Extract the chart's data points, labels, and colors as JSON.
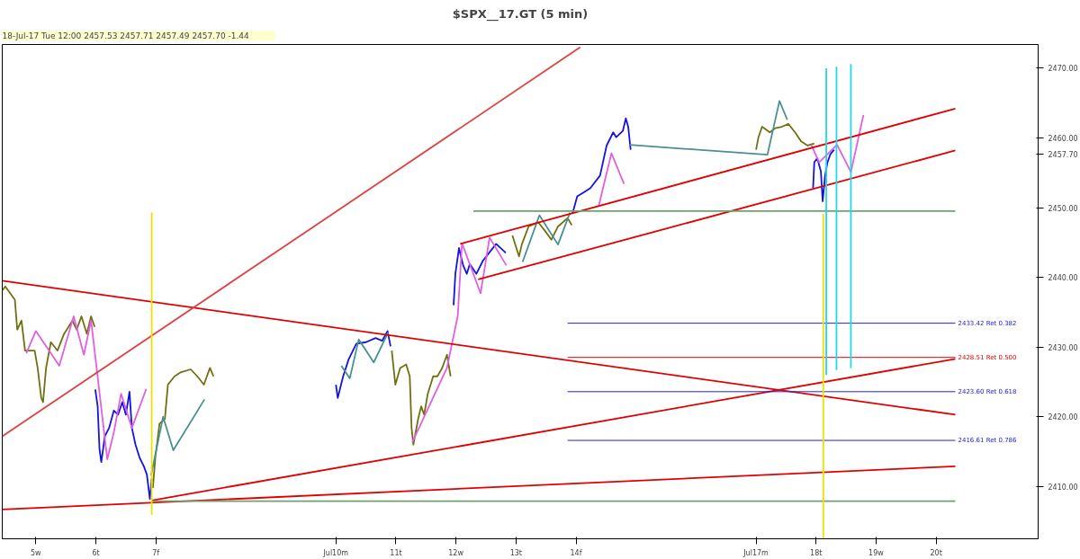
{
  "chart_data": {
    "type": "line",
    "title": "$SPX__17.GT (5 min)",
    "annotations": [
      "18-Jul-17 Tue 12:00   2457.53   2457.71   2457.49   2457.70   -1.44"
    ],
    "xlim": [
      4.44,
      21.7
    ],
    "ylim": [
      2402.5,
      2473.4
    ],
    "xticks": [
      {
        "value": 5,
        "label": "5w"
      },
      {
        "value": 6,
        "label": "6t"
      },
      {
        "value": 7,
        "label": "7f"
      },
      {
        "value": 10,
        "label": "Jul10m"
      },
      {
        "value": 11,
        "label": "11t"
      },
      {
        "value": 12,
        "label": "12w"
      },
      {
        "value": 13,
        "label": "13t"
      },
      {
        "value": 14,
        "label": "14f"
      },
      {
        "value": 17,
        "label": "Jul17m"
      },
      {
        "value": 18,
        "label": "18t"
      },
      {
        "value": 19,
        "label": "19w"
      },
      {
        "value": 20,
        "label": "20t"
      }
    ],
    "yticks": [
      {
        "value": 2410,
        "label": "2410.00"
      },
      {
        "value": 2420,
        "label": "2420.00"
      },
      {
        "value": 2430,
        "label": "2430.00"
      },
      {
        "value": 2440,
        "label": "2440.00"
      },
      {
        "value": 2450,
        "label": "2450.00"
      },
      {
        "value": 2457.7,
        "label": "2457.70"
      },
      {
        "value": 2460,
        "label": "2460.00"
      },
      {
        "value": 2470,
        "label": "2470.00"
      }
    ],
    "grid": false,
    "marker": "none",
    "line_style": "solid",
    "series": [
      {
        "color": "#707010",
        "x": [
          4.44,
          4.49,
          4.65,
          4.69,
          4.76,
          4.82,
          4.98,
          5.03,
          5.09,
          5.12,
          5.17,
          5.25,
          5.36,
          5.47,
          5.61,
          5.68,
          5.76,
          5.85,
          5.92,
          5.98,
          6.0,
          6.95,
          6.99,
          7.06,
          7.15,
          7.2,
          7.31,
          7.42,
          7.58,
          7.69,
          7.8,
          7.9,
          7.96,
          10.0,
          10.93,
          10.99,
          11.07,
          11.17,
          11.23,
          11.26,
          11.29,
          11.37,
          11.42,
          11.47,
          11.53,
          11.62,
          11.69,
          11.77,
          11.85,
          11.91,
          11.93,
          12.94,
          13.05,
          13.1,
          13.21,
          13.37,
          13.48,
          13.59,
          13.7,
          13.86,
          13.93,
          13.94,
          17.0,
          17.04,
          17.1,
          17.23,
          17.32,
          17.43,
          17.54,
          17.65,
          17.75,
          17.86,
          17.97
        ],
        "values": [
          2438.1,
          2438.7,
          2436.8,
          2432.5,
          2433.8,
          2429.5,
          2429.5,
          2427.0,
          2422.7,
          2422.1,
          2427.0,
          2430.7,
          2429.5,
          2431.9,
          2433.8,
          2432.5,
          2434.4,
          2431.9,
          2434.4,
          2432.9,
          null,
          2409.8,
          2414.1,
          2419.0,
          2419.7,
          2424.6,
          2425.8,
          2426.4,
          2426.8,
          2425.8,
          2424.6,
          2427.0,
          2425.8,
          null,
          2429.5,
          2424.6,
          2427.0,
          2427.5,
          2425.8,
          2418.4,
          2416.0,
          2419.7,
          2421.5,
          2420.3,
          2423.3,
          2425.8,
          2425.8,
          2427.0,
          2428.9,
          2425.8,
          null,
          2446.0,
          2443.0,
          2444.8,
          2447.3,
          2447.9,
          2446.7,
          2445.4,
          2447.3,
          2448.5,
          2447.5,
          null,
          2458.3,
          2460.1,
          2461.6,
          2460.8,
          2461.4,
          2461.6,
          2462.0,
          2460.8,
          2459.5,
          2458.9,
          2459.2
        ]
      },
      {
        "color": "#1414e0",
        "x": [
          5.99,
          6.03,
          6.06,
          6.09,
          6.15,
          6.22,
          6.3,
          6.37,
          6.44,
          6.5,
          6.56,
          6.6,
          6.66,
          6.73,
          6.8,
          6.85,
          6.9,
          6.93,
          6.94,
          10.0,
          10.03,
          10.12,
          10.21,
          10.34,
          10.5,
          10.66,
          10.77,
          10.86,
          10.91,
          10.92,
          11.96,
          11.99,
          12.05,
          12.12,
          12.18,
          12.23,
          12.34,
          12.45,
          12.56,
          12.67,
          12.83,
          12.9,
          13.94,
          14.02,
          14.13,
          14.24,
          14.4,
          14.51,
          14.62,
          14.67,
          14.78,
          14.83,
          14.87,
          14.91,
          14.92,
          17.95,
          17.97,
          18.02,
          18.08,
          18.11,
          18.15,
          18.19,
          18.24,
          18.3
        ],
        "values": [
          2423.9,
          2421.5,
          2415.4,
          2413.5,
          2417.2,
          2418.4,
          2420.9,
          2420.3,
          2422.1,
          2420.3,
          2423.6,
          2418.4,
          2416.0,
          2414.1,
          2412.9,
          2411.7,
          2408.2,
          2411.1,
          null,
          2424.6,
          2422.7,
          2425.8,
          2428.2,
          2430.5,
          2430.7,
          2431.3,
          2430.9,
          2432.3,
          2430.1,
          null,
          2436.0,
          2440.5,
          2444.2,
          2441.7,
          2440.5,
          2441.9,
          2440.5,
          2442.4,
          2443.6,
          2444.8,
          2443.5,
          null,
          2449.1,
          2451.6,
          2452.2,
          2452.8,
          2454.6,
          2458.9,
          2460.8,
          2460.1,
          2461.0,
          2462.8,
          2461.6,
          2458.3,
          null,
          2452.8,
          2456.5,
          2457.1,
          2455.2,
          2450.9,
          2454.6,
          2456.5,
          2457.7,
          2458.3
        ]
      },
      {
        "color": "#e060e0",
        "x": [
          4.84,
          5.0,
          5.39,
          5.63,
          5.8,
          5.92,
          6.19,
          6.3,
          6.42,
          6.6,
          6.84,
          7.0,
          11.27,
          11.85,
          12.03,
          12.1,
          12.41,
          12.56,
          12.84,
          13.0,
          14.38,
          14.59,
          14.8,
          14.85,
          17.92,
          18.05,
          18.35,
          18.58,
          18.79
        ],
        "values": [
          2429.1,
          2432.3,
          2427.3,
          2434.4,
          2428.9,
          2433.8,
          2413.9,
          2417.8,
          2423.3,
          2418.4,
          2424.0,
          null,
          2416.3,
          2427.0,
          2434.5,
          2444.9,
          2437.7,
          2445.7,
          2441.7,
          null,
          2450.3,
          2457.8,
          2453.4,
          null,
          2459.0,
          2456.5,
          2459.0,
          2455.1,
          2463.3
        ]
      },
      {
        "color": "#4a9090",
        "x": [
          6.92,
          7.12,
          7.29,
          7.81,
          7.9,
          10.09,
          10.23,
          10.38,
          10.63,
          10.87,
          11.0,
          13.11,
          13.39,
          13.7,
          13.9,
          14.0,
          14.89,
          17.19,
          17.39,
          17.52
        ],
        "values": [
          2411.6,
          2420.0,
          2415.2,
          2422.5,
          null,
          2427.3,
          2425.5,
          2431.1,
          2427.8,
          2432.1,
          null,
          2442.2,
          2448.9,
          2444.7,
          2449.3,
          null,
          2459.0,
          2457.6,
          2465.3,
          2462.6
        ]
      },
      {
        "color": "#e00000",
        "x": [
          4.44,
          20.32
        ],
        "values": [
          2439.5,
          2420.3
        ]
      },
      {
        "color": "#e00000",
        "x": [
          4.44,
          20.32
        ],
        "values": [
          2406.7,
          2412.9
        ]
      },
      {
        "color": "#e00000",
        "x": [
          6.93,
          20.32
        ],
        "values": [
          2408.0,
          2428.3
        ]
      },
      {
        "color": "#e00000",
        "x": [
          12.07,
          20.32
        ],
        "values": [
          2444.8,
          2464.2
        ]
      },
      {
        "color": "#e00000",
        "x": [
          12.37,
          20.32
        ],
        "values": [
          2439.7,
          2458.2
        ]
      },
      {
        "color": "#e04040",
        "x": [
          4.44,
          14.07
        ],
        "values": [
          2417.2,
          2473.0
        ]
      },
      {
        "color": "#70a070",
        "x": [
          6.93,
          20.32
        ],
        "values": [
          2407.9,
          2407.9
        ]
      },
      {
        "color": "#70a070",
        "x": [
          12.29,
          20.32
        ],
        "values": [
          2449.5,
          2449.5
        ]
      },
      {
        "color": "#2020e0",
        "name": "2433.42 Ret 0.382",
        "x": [
          13.86,
          20.32
        ],
        "values": [
          2433.42,
          2433.42
        ]
      },
      {
        "color": "#e00000",
        "name": "2428.51 Ret 0.500",
        "x": [
          13.86,
          20.32
        ],
        "values": [
          2428.51,
          2428.51
        ]
      },
      {
        "color": "#2020e0",
        "name": "2423.60 Ret 0.618",
        "x": [
          13.86,
          20.32
        ],
        "values": [
          2423.6,
          2423.6
        ]
      },
      {
        "color": "#2020e0",
        "name": "2416.61 Ret 0.786",
        "x": [
          13.86,
          20.32
        ],
        "values": [
          2416.61,
          2416.61
        ]
      },
      {
        "color": "#f0e000",
        "x": [
          6.93,
          6.93
        ],
        "values": [
          2449.3,
          2405.9
        ]
      },
      {
        "color": "#f0e000",
        "x": [
          18.12,
          18.12
        ],
        "values": [
          2449.1,
          2402.5
        ]
      },
      {
        "color": "#20d8e8",
        "x": [
          18.17,
          18.17
        ],
        "values": [
          2470.0,
          2426.0
        ]
      },
      {
        "color": "#20d8e8",
        "x": [
          18.34,
          18.34
        ],
        "values": [
          2470.2,
          2426.7
        ]
      },
      {
        "color": "#20d8e8",
        "x": [
          18.58,
          18.58
        ],
        "values": [
          2470.6,
          2427.0
        ]
      }
    ]
  }
}
